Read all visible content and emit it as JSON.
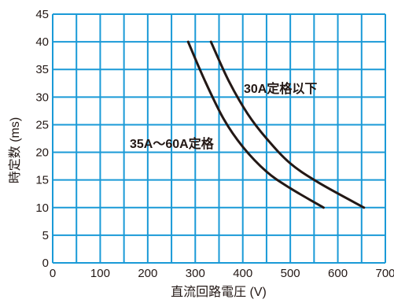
{
  "chart_data": {
    "type": "line",
    "xlabel": "直流回路電圧 (V)",
    "ylabel": "時定数 (ms)",
    "xlim": [
      0,
      700
    ],
    "ylim": [
      0,
      45
    ],
    "x_ticks": [
      0,
      100,
      200,
      300,
      400,
      500,
      600,
      700
    ],
    "y_ticks": [
      0,
      5,
      10,
      15,
      20,
      25,
      30,
      35,
      40,
      45
    ],
    "x_grid_step": 50,
    "y_grid_step": 5,
    "grid": true,
    "grid_color": "#1a9ad7",
    "line_color": "#231815",
    "series": [
      {
        "name": "35A～60A定格",
        "points": [
          [
            285,
            40
          ],
          [
            320,
            33
          ],
          [
            360,
            26
          ],
          [
            400,
            21
          ],
          [
            450,
            16.5
          ],
          [
            500,
            13.5
          ],
          [
            570,
            10
          ]
        ]
      },
      {
        "name": "30A定格以下",
        "points": [
          [
            333,
            40
          ],
          [
            370,
            33
          ],
          [
            410,
            27
          ],
          [
            450,
            22.5
          ],
          [
            500,
            18
          ],
          [
            560,
            14.5
          ],
          [
            655,
            10
          ]
        ]
      }
    ]
  }
}
